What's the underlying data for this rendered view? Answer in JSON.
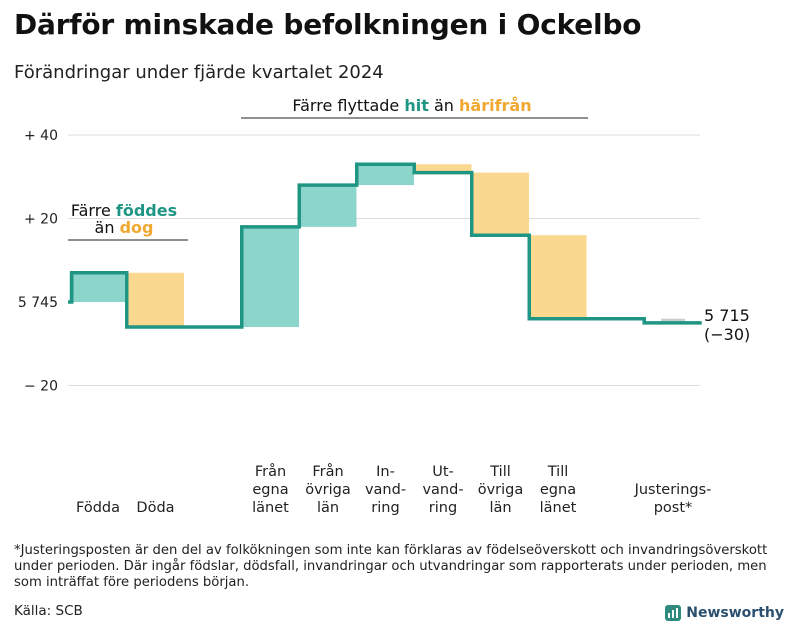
{
  "title": "Därför minskade befolkningen i Ockelbo",
  "subtitle": "Förändringar under fjärde kvartalet 2024",
  "footnote": "*Justeringsposten är den del av folkökningen som inte kan förklaras av födelseöverskott och invandringsöverskott under perioden. Där ingår födslar, dödsfall, invandringar och utvandringar som rapporterats under perioden, men som inträffat före periodens början.",
  "source": "Källa: SCB",
  "brand": "Newsworthy",
  "colors": {
    "increase": "#8cd5cb",
    "decrease": "#fbd88f",
    "adjustment": "#cccccc",
    "line": "#1f9584",
    "teal_text": "#1f9584",
    "orange_text": "#f0a830",
    "grid": "#dddddd"
  },
  "chart_data": {
    "type": "waterfall",
    "start_value": 5745,
    "end_value": 5715,
    "change": -30,
    "ylim_relative": [
      -26,
      43
    ],
    "y_ticks": [
      {
        "value": 40,
        "label": "+ 40"
      },
      {
        "value": 20,
        "label": "+ 20"
      },
      {
        "value": 0,
        "label": "5 745"
      },
      {
        "value": -20,
        "label": "− 20"
      }
    ],
    "end_label": "5 715",
    "end_change_label": "(−30)",
    "steps": [
      {
        "label": [
          "Födda"
        ],
        "delta": 7,
        "kind": "increase"
      },
      {
        "label": [
          "Döda"
        ],
        "delta": -13,
        "kind": "decrease"
      },
      {
        "label": [],
        "delta": 0,
        "kind": "spacer"
      },
      {
        "label": [
          "Från",
          "egna",
          "länet"
        ],
        "delta": 24,
        "kind": "increase"
      },
      {
        "label": [
          "Från",
          "övriga",
          "län"
        ],
        "delta": 10,
        "kind": "increase"
      },
      {
        "label": [
          "In-",
          "vand-",
          "ring"
        ],
        "delta": 5,
        "kind": "increase"
      },
      {
        "label": [
          "Ut-",
          "vand-",
          "ring"
        ],
        "delta": -2,
        "kind": "decrease"
      },
      {
        "label": [
          "Till",
          "övriga",
          "län"
        ],
        "delta": -15,
        "kind": "decrease"
      },
      {
        "label": [
          "Till",
          "egna",
          "länet"
        ],
        "delta": -20,
        "kind": "decrease"
      },
      {
        "label": [],
        "delta": 0,
        "kind": "spacer"
      },
      {
        "label": [
          "Justerings-",
          "post*"
        ],
        "delta": -1,
        "kind": "adjustment"
      }
    ],
    "annotations": [
      {
        "parts": [
          {
            "text": "Färre ",
            "color": "dark"
          },
          {
            "text": "föddes",
            "color": "teal"
          }
        ],
        "parts2": [
          {
            "text": "än ",
            "color": "dark"
          },
          {
            "text": "dog",
            "color": "orange"
          }
        ]
      },
      {
        "parts": [
          {
            "text": "Färre flyttade ",
            "color": "dark"
          },
          {
            "text": "hit",
            "color": "teal"
          },
          {
            "text": " än ",
            "color": "dark"
          },
          {
            "text": "härifrån",
            "color": "orange"
          }
        ]
      }
    ]
  }
}
